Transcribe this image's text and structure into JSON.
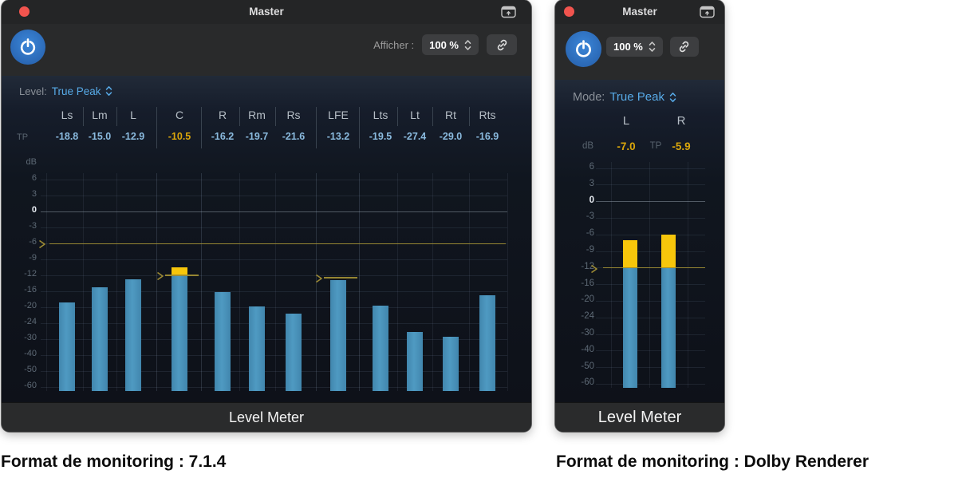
{
  "captions": [
    {
      "text": "Format de monitoring : 7.1.4"
    },
    {
      "text": "Format de monitoring : Dolby Renderer"
    }
  ],
  "colors": {
    "bar_blue": "#4f9ac2",
    "bar_peak_yellow": "#f7c60b",
    "threshold_olive": "#9e8c34",
    "value_blue": "#8abade",
    "value_yellow": "#d9a50b",
    "mode_value_blue": "#57aae7",
    "power_button_blue": "#2f78c8",
    "close_dot_red": "#f1544e"
  },
  "windows": [
    {
      "title": "Master",
      "header": {
        "display_label": "Afficher :",
        "display_value": "100 %"
      },
      "mode": {
        "label": "Level:",
        "value": "True Peak"
      },
      "meter": {
        "unit_label": "dB",
        "tp_label": "TP",
        "scale_ticks": [
          "6",
          "3",
          "0",
          "-3",
          "-6",
          "-9",
          "-12",
          "-16",
          "-20",
          "-24",
          "-30",
          "-40",
          "-50",
          "-60"
        ],
        "channels": [
          {
            "name": "Ls",
            "value": "-18.8"
          },
          {
            "name": "Lm",
            "value": "-15.0"
          },
          {
            "name": "L",
            "value": "-12.9"
          },
          {
            "name": "C",
            "value": "-10.5",
            "highlight": true,
            "over_db": -12
          },
          {
            "name": "R",
            "value": "-16.2"
          },
          {
            "name": "Rm",
            "value": "-19.7"
          },
          {
            "name": "Rs",
            "value": "-21.6"
          },
          {
            "name": "LFE",
            "value": "-13.2"
          },
          {
            "name": "Lts",
            "value": "-19.5"
          },
          {
            "name": "Lt",
            "value": "-27.4"
          },
          {
            "name": "Rt",
            "value": "-29.0"
          },
          {
            "name": "Rts",
            "value": "-16.9"
          }
        ],
        "threshold_db": -6,
        "peak_markers": [
          {
            "channel": "C",
            "db": -12
          },
          {
            "channel": "LFE",
            "db": -12.6
          }
        ]
      },
      "plugin_label": "Level Meter"
    },
    {
      "title": "Master",
      "header": {
        "display_value": "100 %"
      },
      "mode": {
        "label": "Mode:",
        "value": "True Peak"
      },
      "meter": {
        "unit_label": "dB",
        "tp_label": "TP",
        "scale_ticks": [
          "6",
          "3",
          "0",
          "-3",
          "-6",
          "-9",
          "-12",
          "-16",
          "-20",
          "-24",
          "-30",
          "-40",
          "-50",
          "-60"
        ],
        "channels": [
          {
            "name": "L",
            "value": "-7.0",
            "highlight": true,
            "over_db": -12
          },
          {
            "name": "R",
            "value": "-5.9",
            "highlight": true,
            "over_db": -12
          }
        ],
        "threshold_db": -12,
        "peak_markers": []
      },
      "plugin_label": "Level Meter"
    }
  ],
  "chart_data": [
    {
      "type": "bar",
      "title": "Level Meter (7.1.4)",
      "ylabel": "dB",
      "ylim": [
        -60,
        6
      ],
      "categories": [
        "Ls",
        "Lm",
        "L",
        "C",
        "R",
        "Rm",
        "Rs",
        "LFE",
        "Lts",
        "Lt",
        "Rt",
        "Rts"
      ],
      "values": [
        -18.8,
        -15.0,
        -12.9,
        -10.5,
        -16.2,
        -19.7,
        -21.6,
        -13.2,
        -19.5,
        -27.4,
        -29.0,
        -16.9
      ],
      "yticks": [
        6,
        3,
        0,
        -3,
        -6,
        -9,
        -12,
        -16,
        -20,
        -24,
        -30,
        -40,
        -50,
        -60
      ],
      "reference_line_db": -6,
      "grid": true,
      "legend": "none"
    },
    {
      "type": "bar",
      "title": "Level Meter (Dolby Renderer)",
      "ylabel": "dB",
      "ylim": [
        -60,
        6
      ],
      "categories": [
        "L",
        "R"
      ],
      "values": [
        -7.0,
        -5.9
      ],
      "yticks": [
        6,
        3,
        0,
        -3,
        -6,
        -9,
        -12,
        -16,
        -20,
        -24,
        -30,
        -40,
        -50,
        -60
      ],
      "reference_line_db": -12,
      "grid": true,
      "legend": "none"
    }
  ]
}
